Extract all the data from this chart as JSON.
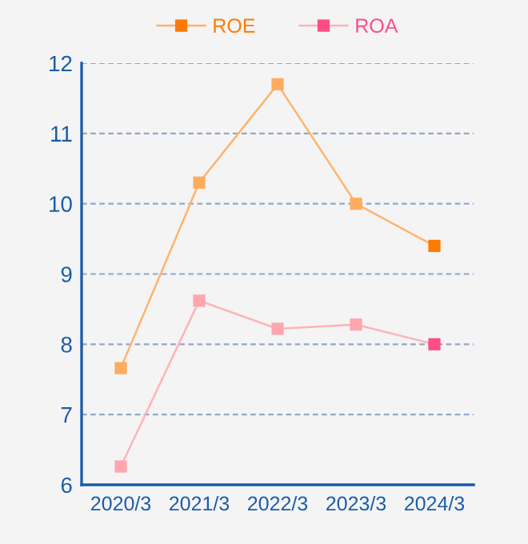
{
  "chart_data": {
    "type": "line",
    "categories": [
      "2020/3",
      "2021/3",
      "2022/3",
      "2023/3",
      "2024/3"
    ],
    "series": [
      {
        "name": "ROE",
        "color": "#ffb36e",
        "colors": [
          "#ffab5e",
          "#ffab5e",
          "#ffab5e",
          "#ffab5e",
          "#ff7a00"
        ],
        "values": [
          7.66,
          10.3,
          11.7,
          10.0,
          9.4
        ]
      },
      {
        "name": "ROA",
        "color": "#ffb3b9",
        "colors": [
          "#ffa6ae",
          "#ffa6ae",
          "#ffa6ae",
          "#ffa6ae",
          "#ff4d85"
        ],
        "values": [
          6.26,
          8.62,
          8.22,
          8.28,
          8.0
        ]
      }
    ],
    "ylim": [
      6,
      12
    ],
    "yticks": [
      6,
      7,
      8,
      9,
      10,
      11,
      12
    ],
    "grid": "y",
    "legend": "top",
    "marker": "square",
    "line_style": "solid"
  }
}
